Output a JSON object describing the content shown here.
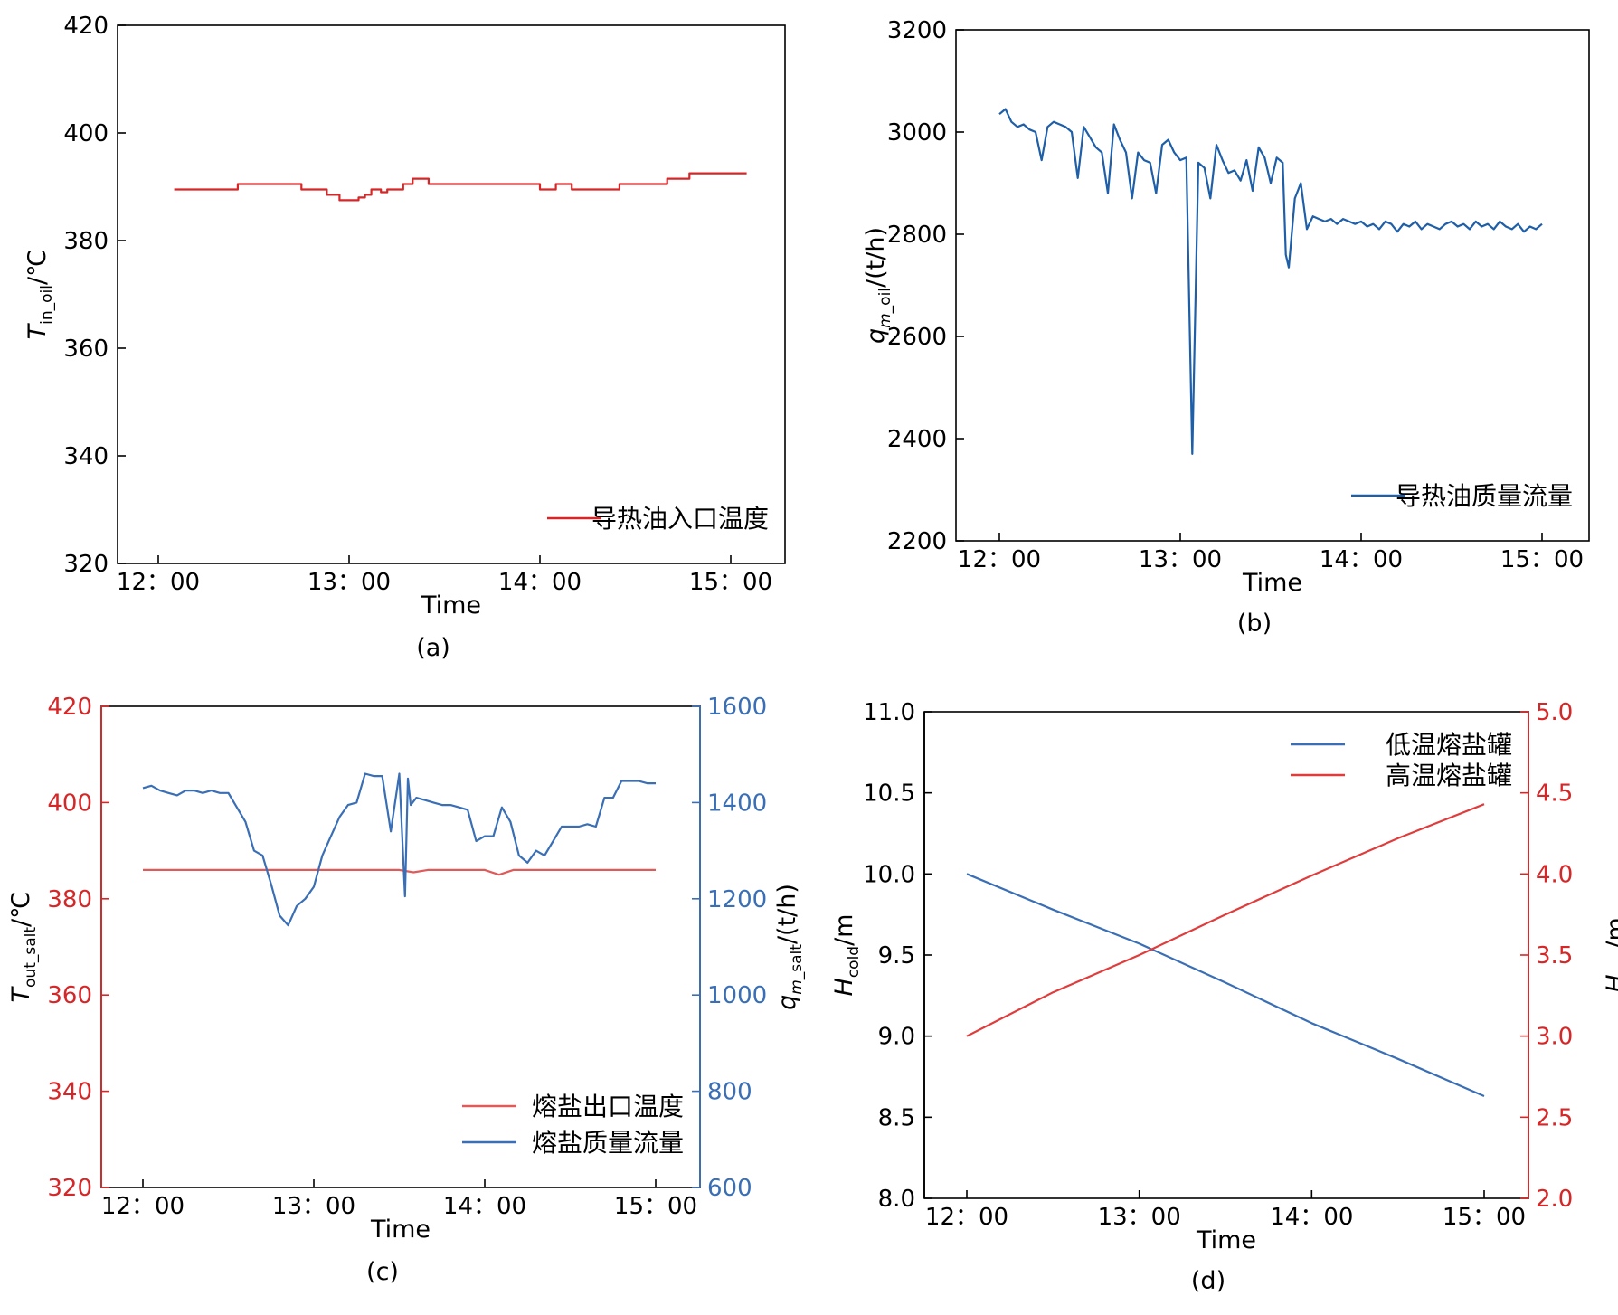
{
  "chart_data": [
    {
      "panel_label": "(a)",
      "type": "line",
      "xlabel": "Time",
      "x_ticks": [
        "12：00",
        "13：00",
        "14：00",
        "15：00"
      ],
      "ylabel": "T",
      "ylabel_sub": "in_oil",
      "ylabel_unit": "/℃",
      "ylim": [
        320,
        420
      ],
      "y_ticks": [
        320,
        340,
        360,
        380,
        400,
        420
      ],
      "legend_position": "bottom-right",
      "series": [
        {
          "name": "导热油入口温度",
          "color": "#d62728",
          "x": [
            "12:05",
            "12:25",
            "12:25",
            "12:45",
            "12:45",
            "12:53",
            "12:53",
            "12:57",
            "12:57",
            "13:03",
            "13:03",
            "13:05",
            "13:05",
            "13:07",
            "13:07",
            "13:10",
            "13:10",
            "13:12",
            "13:12",
            "13:17",
            "13:17",
            "13:20",
            "13:20",
            "13:25",
            "13:25",
            "13:35",
            "13:35",
            "14:00",
            "14:00",
            "14:05",
            "14:05",
            "14:10",
            "14:10",
            "14:25",
            "14:25",
            "14:40",
            "14:40",
            "14:47",
            "14:47",
            "15:05"
          ],
          "values": [
            389.5,
            389.5,
            390.5,
            390.5,
            389.5,
            389.5,
            388.5,
            388.5,
            387.5,
            387.5,
            388.0,
            388.0,
            388.5,
            388.5,
            389.5,
            389.5,
            389.0,
            389.0,
            389.5,
            389.5,
            390.5,
            390.5,
            391.5,
            391.5,
            390.5,
            390.5,
            390.5,
            390.5,
            389.5,
            389.5,
            390.5,
            390.5,
            389.5,
            389.5,
            390.5,
            390.5,
            391.5,
            391.5,
            392.5,
            392.5
          ]
        }
      ]
    },
    {
      "panel_label": "(b)",
      "type": "line",
      "xlabel": "Time",
      "x_ticks": [
        "12：00",
        "13：00",
        "14：00",
        "15：00"
      ],
      "ylabel": "q",
      "ylabel_sub": "m",
      "ylabel_sub2": "_oil",
      "ylabel_unit": "/(t/h)",
      "ylim": [
        2200,
        3200
      ],
      "y_ticks": [
        2200,
        2400,
        2600,
        2800,
        3000,
        3200
      ],
      "legend_position": "bottom-right",
      "series": [
        {
          "name": "导热油质量流量",
          "color": "#1f5fa8",
          "x": [
            "12:00",
            "12:02",
            "12:04",
            "12:06",
            "12:08",
            "12:10",
            "12:12",
            "12:14",
            "12:16",
            "12:18",
            "12:20",
            "12:22",
            "12:24",
            "12:26",
            "12:28",
            "12:30",
            "12:32",
            "12:34",
            "12:36",
            "12:38",
            "12:40",
            "12:42",
            "12:44",
            "12:46",
            "12:48",
            "12:50",
            "12:52",
            "12:54",
            "12:56",
            "12:58",
            "13:00",
            "13:02",
            "13:04",
            "13:06",
            "13:08",
            "13:10",
            "13:12",
            "13:14",
            "13:16",
            "13:18",
            "13:20",
            "13:22",
            "13:24",
            "13:26",
            "13:28",
            "13:30",
            "13:32",
            "13:34",
            "13:35",
            "13:36",
            "13:38",
            "13:40",
            "13:42",
            "13:44",
            "13:46",
            "13:48",
            "13:50",
            "13:52",
            "13:54",
            "13:56",
            "13:58",
            "14:00",
            "14:02",
            "14:04",
            "14:06",
            "14:08",
            "14:10",
            "14:12",
            "14:14",
            "14:16",
            "14:18",
            "14:20",
            "14:22",
            "14:24",
            "14:26",
            "14:28",
            "14:30",
            "14:32",
            "14:34",
            "14:36",
            "14:38",
            "14:40",
            "14:42",
            "14:44",
            "14:46",
            "14:48",
            "14:50",
            "14:52",
            "14:54",
            "14:56",
            "14:58",
            "15:00"
          ],
          "values": [
            3035,
            3045,
            3020,
            3010,
            3015,
            3005,
            3000,
            2945,
            3010,
            3020,
            3015,
            3010,
            3000,
            2910,
            3010,
            2990,
            2970,
            2960,
            2880,
            3015,
            2985,
            2960,
            2870,
            2960,
            2945,
            2940,
            2880,
            2975,
            2985,
            2960,
            2945,
            2950,
            2370,
            2940,
            2930,
            2870,
            2975,
            2945,
            2920,
            2925,
            2905,
            2945,
            2885,
            2970,
            2950,
            2900,
            2950,
            2940,
            2760,
            2735,
            2870,
            2900,
            2810,
            2835,
            2830,
            2825,
            2830,
            2820,
            2830,
            2825,
            2820,
            2825,
            2815,
            2820,
            2810,
            2825,
            2820,
            2805,
            2820,
            2815,
            2825,
            2810,
            2820,
            2815,
            2810,
            2820,
            2825,
            2815,
            2820,
            2810,
            2825,
            2815,
            2820,
            2810,
            2825,
            2815,
            2810,
            2820,
            2805,
            2815,
            2810,
            2820
          ]
        }
      ]
    },
    {
      "panel_label": "(c)",
      "type": "line",
      "xlabel": "Time",
      "x_ticks": [
        "12：00",
        "13：00",
        "14：00",
        "15：00"
      ],
      "ylabel_left": "T",
      "ylabel_left_sub": "out_salt",
      "ylabel_left_unit": "/℃",
      "ylim_left": [
        320,
        420
      ],
      "y_ticks_left": [
        320,
        340,
        360,
        380,
        400,
        420
      ],
      "ylabel_right": "q",
      "ylabel_right_sub": "m",
      "ylabel_right_sub2": "_salt",
      "ylabel_right_unit": "/(t/h)",
      "ylim_right": [
        600,
        1600
      ],
      "y_ticks_right": [
        600,
        800,
        1000,
        1200,
        1400,
        1600
      ],
      "left_axis_color": "#d62728",
      "right_axis_color": "#3a6fb5",
      "legend_position": "bottom-right",
      "series": [
        {
          "name": "熔盐出口温度",
          "axis": "left",
          "color": "#e05a5a",
          "x": [
            "12:00",
            "12:30",
            "13:00",
            "13:30",
            "13:35",
            "13:40",
            "14:00",
            "14:05",
            "14:10",
            "14:30",
            "15:00"
          ],
          "values": [
            386,
            386,
            386,
            386,
            385.5,
            386,
            386,
            385,
            386,
            386,
            386
          ]
        },
        {
          "name": "熔盐质量流量",
          "axis": "right",
          "color": "#3a6fb5",
          "x": [
            "12:00",
            "12:03",
            "12:06",
            "12:09",
            "12:12",
            "12:15",
            "12:18",
            "12:21",
            "12:24",
            "12:27",
            "12:30",
            "12:33",
            "12:36",
            "12:39",
            "12:42",
            "12:45",
            "12:48",
            "12:51",
            "12:54",
            "12:57",
            "13:00",
            "13:03",
            "13:06",
            "13:09",
            "13:12",
            "13:15",
            "13:18",
            "13:21",
            "13:24",
            "13:27",
            "13:30",
            "13:32",
            "13:33",
            "13:34",
            "13:36",
            "13:39",
            "13:42",
            "13:45",
            "13:48",
            "13:51",
            "13:54",
            "13:57",
            "14:00",
            "14:03",
            "14:06",
            "14:09",
            "14:12",
            "14:15",
            "14:18",
            "14:21",
            "14:24",
            "14:27",
            "14:30",
            "14:33",
            "14:36",
            "14:39",
            "14:42",
            "14:45",
            "14:48",
            "14:51",
            "14:54",
            "14:57",
            "15:00"
          ],
          "values": [
            1430,
            1435,
            1425,
            1420,
            1415,
            1425,
            1425,
            1420,
            1425,
            1420,
            1420,
            1390,
            1360,
            1300,
            1290,
            1230,
            1165,
            1145,
            1185,
            1200,
            1225,
            1290,
            1330,
            1370,
            1395,
            1400,
            1460,
            1455,
            1455,
            1340,
            1460,
            1205,
            1450,
            1395,
            1410,
            1405,
            1400,
            1395,
            1395,
            1390,
            1385,
            1320,
            1330,
            1330,
            1390,
            1360,
            1290,
            1275,
            1300,
            1290,
            1320,
            1350,
            1350,
            1350,
            1355,
            1350,
            1410,
            1410,
            1445,
            1445,
            1445,
            1440,
            1440
          ]
        }
      ]
    },
    {
      "panel_label": "(d)",
      "type": "line",
      "xlabel": "Time",
      "x_ticks": [
        "12：00",
        "13：00",
        "14：00",
        "15：00"
      ],
      "ylabel_left": "H",
      "ylabel_left_sub": "cold",
      "ylabel_left_unit": "/m",
      "ylim_left": [
        8.0,
        11.0
      ],
      "y_ticks_left": [
        "8.0",
        "8.5",
        "9.0",
        "9.5",
        "10.0",
        "10.5",
        "11.0"
      ],
      "ylabel_right": "H",
      "ylabel_right_sub": "hot",
      "ylabel_right_unit": "/m",
      "ylim_right": [
        2.0,
        5.0
      ],
      "y_ticks_right": [
        "2.0",
        "2.5",
        "3.0",
        "3.5",
        "4.0",
        "4.5",
        "5.0"
      ],
      "right_axis_color": "#d62728",
      "legend_position": "top-right",
      "series": [
        {
          "name": "低温熔盐罐",
          "axis": "left",
          "color": "#3a6fb5",
          "x": [
            "12:00",
            "12:30",
            "13:00",
            "13:30",
            "14:00",
            "14:30",
            "15:00"
          ],
          "values": [
            10.0,
            9.78,
            9.57,
            9.33,
            9.08,
            8.86,
            8.63
          ]
        },
        {
          "name": "高温熔盐罐",
          "axis": "right",
          "color": "#e03c3c",
          "x": [
            "12:00",
            "12:30",
            "13:00",
            "13:30",
            "14:00",
            "14:30",
            "15:00"
          ],
          "values": [
            3.0,
            3.27,
            3.5,
            3.75,
            3.99,
            4.22,
            4.43
          ]
        }
      ]
    }
  ]
}
